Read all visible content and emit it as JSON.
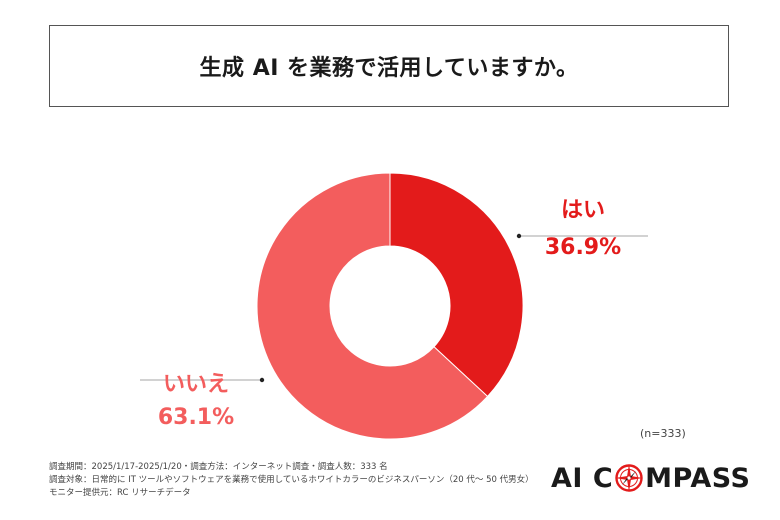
{
  "title": "生成 AI を業務で活用していますか。",
  "chart_data": {
    "type": "pie",
    "donut": true,
    "slices": [
      {
        "label": "はい",
        "value": 36.9,
        "display": "36.9%",
        "color": "#e31b1b"
      },
      {
        "label": "いいえ",
        "value": 63.1,
        "display": "63.1%",
        "color": "#f35d5d"
      }
    ]
  },
  "sample_size": "(n=333)",
  "footnotes": {
    "line1": "調査期間：2025/1/17-2025/1/20・調査方法：インターネット調査・調査人数：333 名",
    "line2": "調査対象：日常的に IT ツールやソフトウェアを業務で使用しているホワイトカラーのビジネスパーソン（20 代〜 50 代男女）",
    "line3": "モニター提供元：RC リサーチデータ"
  },
  "logo": {
    "left": "AI C",
    "right": "MPASS",
    "icon": "compass-icon",
    "color": "#1a1a1a",
    "accent": "#e31b1b"
  }
}
